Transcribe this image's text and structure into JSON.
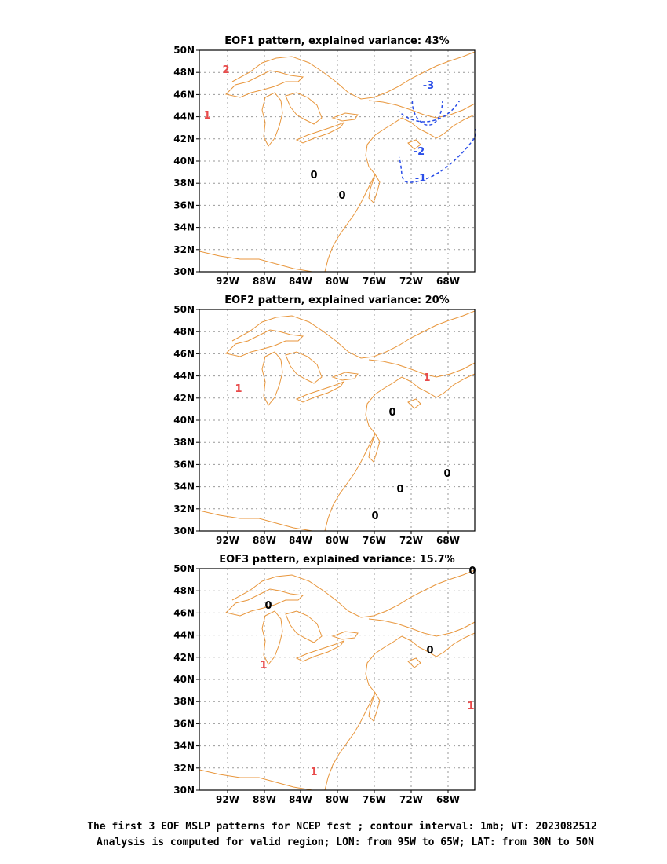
{
  "colors": {
    "zero_contour": "#000000",
    "positive_contour": "#e84a4a",
    "negative_contour": "#2a4ee8",
    "coastline": "#e8963c",
    "grid": "#999999"
  },
  "x_ticks": [
    "92W",
    "88W",
    "84W",
    "80W",
    "76W",
    "72W",
    "68W"
  ],
  "y_ticks": [
    "30N",
    "32N",
    "34N",
    "36N",
    "38N",
    "40N",
    "42N",
    "44N",
    "46N",
    "48N",
    "50N"
  ],
  "panels": [
    {
      "title": "EOF1 pattern, explained variance: 43%",
      "contour_labels": [
        {
          "text": "2",
          "kind": "positive"
        },
        {
          "text": "1",
          "kind": "positive"
        },
        {
          "text": "0",
          "kind": "zero"
        },
        {
          "text": "0",
          "kind": "zero"
        },
        {
          "text": "-3",
          "kind": "negative"
        },
        {
          "text": "-2",
          "kind": "negative"
        },
        {
          "text": "-1",
          "kind": "negative"
        }
      ]
    },
    {
      "title": "EOF2 pattern, explained variance: 20%",
      "contour_labels": [
        {
          "text": "1",
          "kind": "positive"
        },
        {
          "text": "1",
          "kind": "positive"
        },
        {
          "text": "0",
          "kind": "zero"
        },
        {
          "text": "0",
          "kind": "zero"
        },
        {
          "text": "0",
          "kind": "zero"
        },
        {
          "text": "0",
          "kind": "zero"
        }
      ]
    },
    {
      "title": "EOF3 pattern, explained variance: 15.7%",
      "contour_labels": [
        {
          "text": "0",
          "kind": "zero"
        },
        {
          "text": "0",
          "kind": "zero"
        },
        {
          "text": "0",
          "kind": "zero"
        },
        {
          "text": "1",
          "kind": "positive"
        },
        {
          "text": "1",
          "kind": "positive"
        },
        {
          "text": "1",
          "kind": "positive"
        }
      ]
    }
  ],
  "caption": {
    "line1": "The first 3 EOF MSLP patterns for NCEP fcst ; contour interval: 1mb; VT: 2023082512",
    "line2": "Analysis is computed for valid region; LON: from 95W to 65W; LAT: from 30N to 50N"
  }
}
